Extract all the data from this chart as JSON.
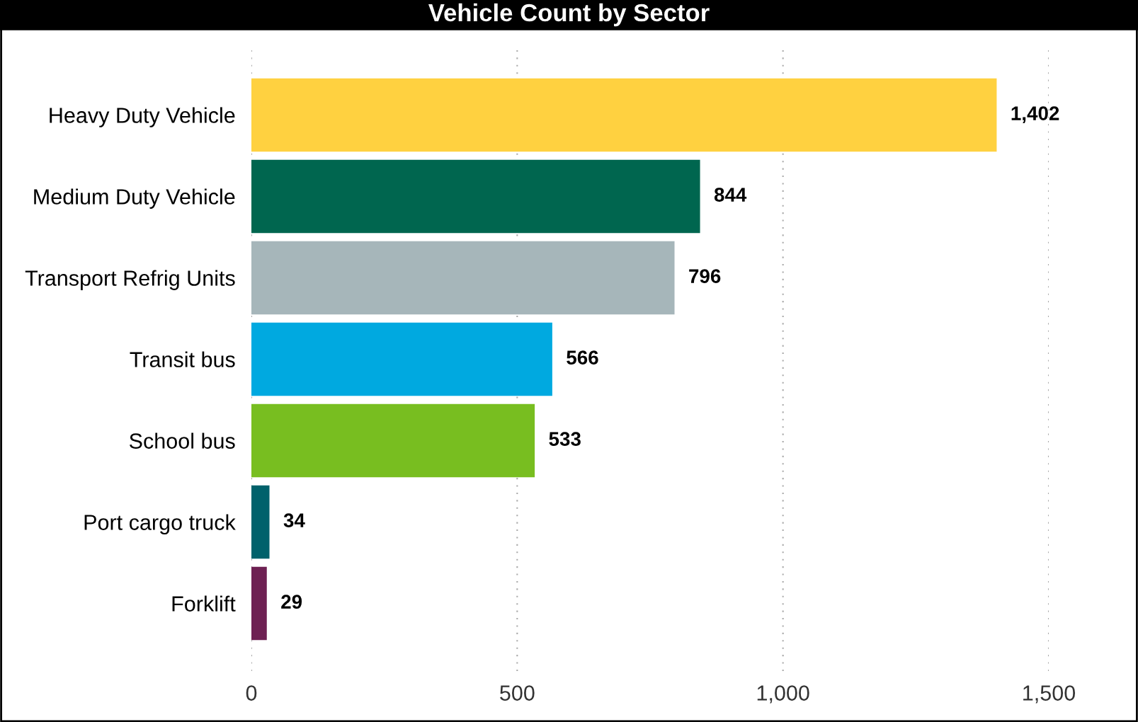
{
  "chart_data": {
    "type": "bar",
    "orientation": "horizontal",
    "title": "Vehicle Count by Sector",
    "categories": [
      "Heavy Duty Vehicle",
      "Medium Duty Vehicle",
      "Transport Refrig Units",
      "Transit bus",
      "School bus",
      "Port cargo truck",
      "Forklift"
    ],
    "values": [
      1402,
      844,
      796,
      566,
      533,
      34,
      29
    ],
    "colors": [
      "#ffd140",
      "#00664f",
      "#a6b6ba",
      "#00a9e0",
      "#78be20",
      "#00616b",
      "#6e2153"
    ],
    "value_labels": [
      "1,402",
      "844",
      "796",
      "566",
      "533",
      "34",
      "29"
    ],
    "xlim": [
      0,
      1500
    ],
    "xticks": [
      0,
      500,
      {
        "value": 1000,
        "label": "1,000"
      },
      {
        "value": 1500,
        "label": "1,500"
      }
    ],
    "grid": "x",
    "legend": false
  }
}
